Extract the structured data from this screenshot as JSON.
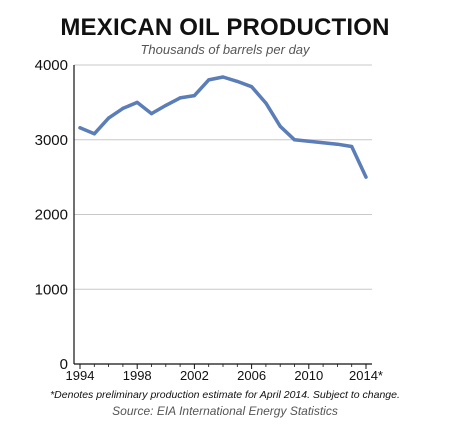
{
  "chart_data": {
    "type": "line",
    "title": "MEXICAN OIL PRODUCTION",
    "subtitle": "Thousands of barrels per day",
    "xlabel": "",
    "ylabel": "",
    "xlim": [
      1994,
      2014
    ],
    "ylim": [
      0,
      4000
    ],
    "xticks": [
      1994,
      1998,
      2002,
      2006,
      2010,
      2014
    ],
    "xtick_labels": [
      "1994",
      "1998",
      "2002",
      "2006",
      "2010",
      "2014*"
    ],
    "yticks": [
      0,
      1000,
      2000,
      3000,
      4000
    ],
    "ytick_labels": [
      "0",
      "1000",
      "2000",
      "3000",
      "4000"
    ],
    "grid": true,
    "legend": "none",
    "line_color": "#5b7db8",
    "series": [
      {
        "x": [
          1994,
          1995,
          1996,
          1997,
          1998,
          1999,
          2000,
          2001,
          2002,
          2003,
          2004,
          2005,
          2006,
          2007,
          2008,
          2009,
          2010,
          2011,
          2012,
          2013,
          2014
        ],
        "values": [
          3160,
          3080,
          3290,
          3420,
          3500,
          3350,
          3460,
          3560,
          3590,
          3800,
          3840,
          3780,
          3710,
          3490,
          3180,
          3000,
          2980,
          2960,
          2940,
          2910,
          2500
        ]
      }
    ],
    "footnote": "*Denotes preliminary production estimate for April 2014. Subject to change.",
    "source": "Source: EIA International Energy Statistics"
  }
}
